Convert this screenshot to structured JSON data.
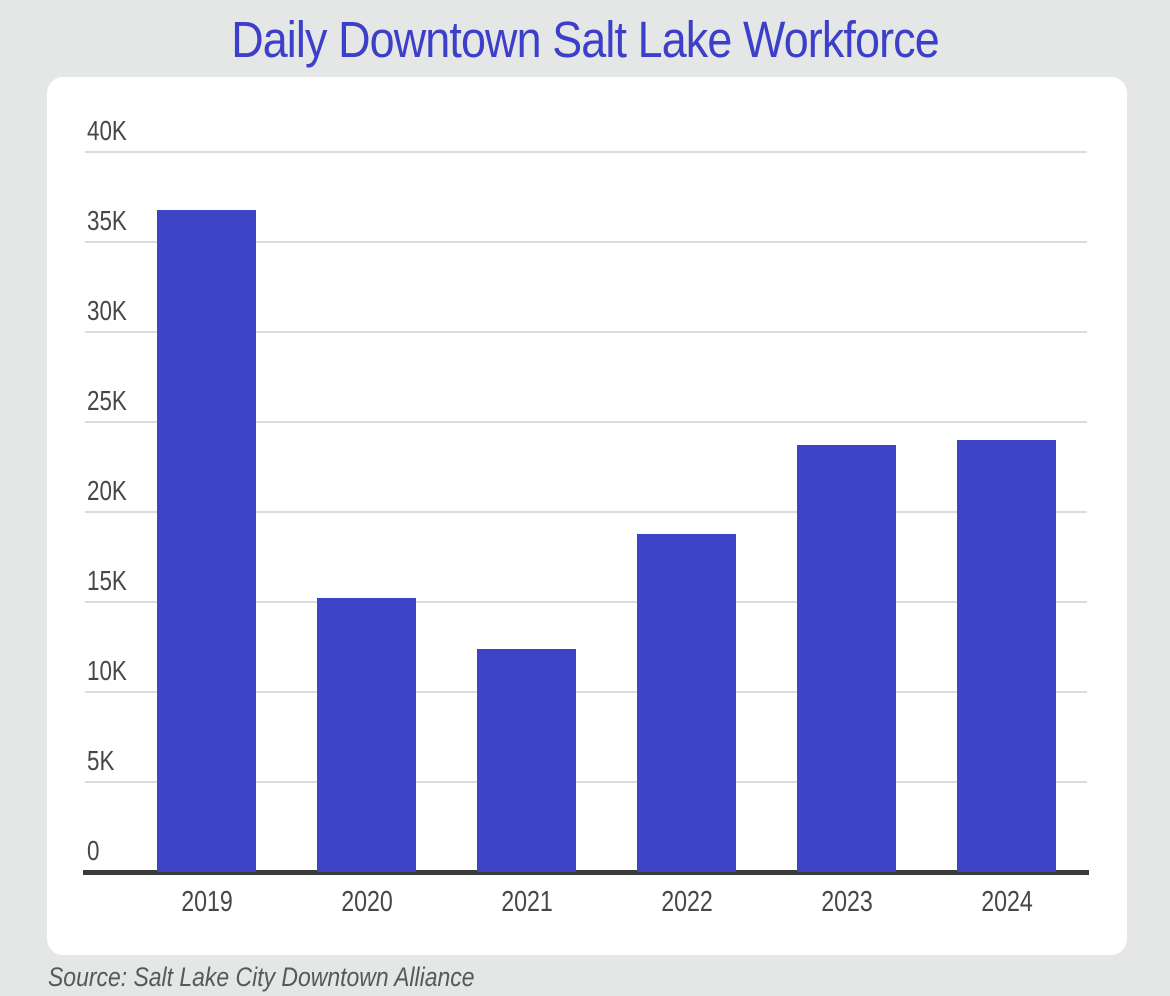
{
  "title": "Daily Downtown Salt Lake Workforce",
  "source": "Source: Salt Lake City Downtown Alliance",
  "colors": {
    "background": "#e5e6e6",
    "card": "#ffffff",
    "title": "#3c3fc9",
    "bar": "#3e44c6",
    "grid": "#dcdcdc",
    "axis": "#3b3b3b",
    "tick_label": "#474747",
    "source_text": "#57585a"
  },
  "chart_data": {
    "type": "bar",
    "title": "Daily Downtown Salt Lake Workforce",
    "categories": [
      "2019",
      "2020",
      "2021",
      "2022",
      "2023",
      "2024"
    ],
    "values": [
      36800,
      15200,
      12400,
      18800,
      23700,
      24000
    ],
    "xlabel": "",
    "ylabel": "",
    "ylim": [
      0,
      40000
    ],
    "y_ticks": [
      {
        "label": "40K",
        "value": 40000
      },
      {
        "label": "35K",
        "value": 35000
      },
      {
        "label": "30K",
        "value": 30000
      },
      {
        "label": "25K",
        "value": 25000
      },
      {
        "label": "20K",
        "value": 20000
      },
      {
        "label": "15K",
        "value": 15000
      },
      {
        "label": "10K",
        "value": 10000
      },
      {
        "label": "5K",
        "value": 5000
      },
      {
        "label": "0",
        "value": 0
      }
    ],
    "grid": true,
    "legend": false,
    "source": "Source: Salt Lake City Downtown Alliance"
  }
}
